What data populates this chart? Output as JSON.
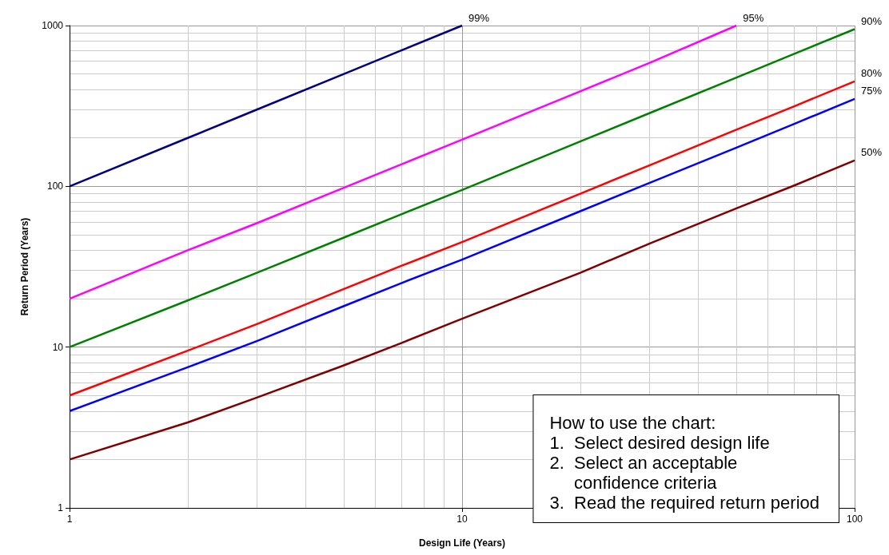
{
  "chart_data": {
    "type": "line",
    "xlabel": "Design Life (Years)",
    "ylabel": "Return Period (Years)",
    "x": [
      1,
      2,
      3,
      5,
      7,
      10,
      20,
      30,
      50,
      70,
      100
    ],
    "series": [
      {
        "name": "99%",
        "color": "#000080",
        "x": [
          1,
          2,
          3,
          5,
          7,
          10
        ],
        "values": [
          100,
          200,
          300,
          500,
          700,
          1000
        ]
      },
      {
        "name": "95%",
        "color": "#ff00ff",
        "x": [
          1,
          2,
          3,
          5,
          7,
          10,
          20,
          30,
          50
        ],
        "values": [
          20,
          40,
          59,
          98,
          137,
          195,
          390,
          585,
          1000
        ]
      },
      {
        "name": "90%",
        "color": "#008000",
        "values": [
          10,
          19.5,
          29,
          48,
          67,
          95,
          190,
          285,
          475,
          665,
          950
        ]
      },
      {
        "name": "80%",
        "color": "#ff0000",
        "values": [
          5,
          9.5,
          13.9,
          23,
          32,
          45,
          90,
          135,
          225,
          314,
          450
        ]
      },
      {
        "name": "75%",
        "color": "#0000ff",
        "values": [
          4,
          7.5,
          10.9,
          18,
          25,
          35,
          70,
          105,
          174,
          244,
          350
        ]
      },
      {
        "name": "50%",
        "color": "#800000",
        "values": [
          2,
          3.4,
          4.85,
          7.7,
          10.6,
          15,
          29,
          44,
          73,
          101,
          145
        ]
      }
    ],
    "log": "xy",
    "xlim": [
      1,
      100
    ],
    "xticks": [
      1,
      10,
      100
    ],
    "ylim": [
      1,
      1000
    ],
    "yticks": [
      1,
      10,
      100,
      1000
    ],
    "grid": true,
    "legend": false,
    "marker": "none",
    "line_style": "solid",
    "annotations": [
      "How to use the chart:\n1.  Select desired design life\n2.  Select an acceptable\n     confidence criteria\n3.  Read the required return period"
    ]
  }
}
